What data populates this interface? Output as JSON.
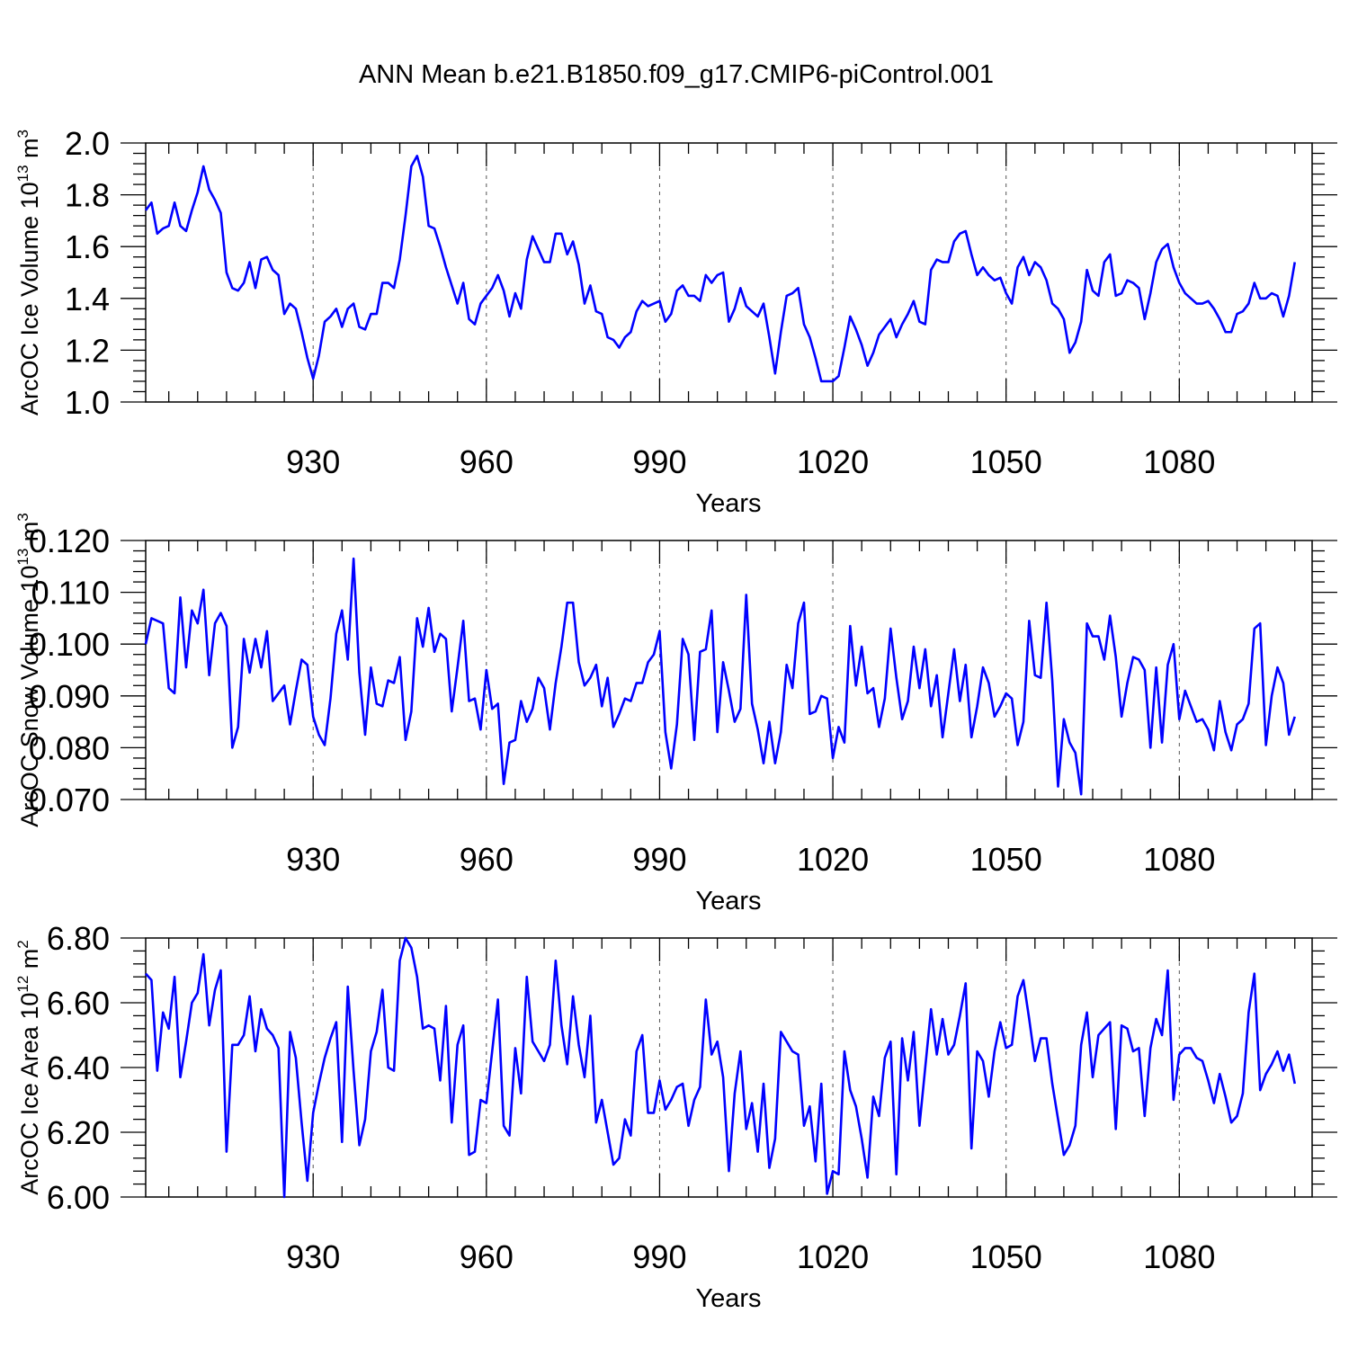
{
  "title": "ANN Mean b.e21.B1850.f09_g17.CMIP6-piControl.001",
  "chart_data": [
    {
      "type": "line",
      "name": "ice-volume",
      "ylabel": "ArcOC Ice Volume 10",
      "ylabel_sup": "13",
      "ylabel_unit": "m",
      "ylabel_unit_sup": "3",
      "xlabel": "Years",
      "xlim": [
        901,
        1103
      ],
      "ylim": [
        1.0,
        2.0
      ],
      "xticks": [
        930,
        960,
        990,
        1020,
        1050,
        1080
      ],
      "xtick_labels": [
        "930",
        "960",
        "990",
        "1020",
        "1050",
        "1080"
      ],
      "yticks": [
        1.0,
        1.2,
        1.4,
        1.6,
        1.8,
        2.0
      ],
      "ytick_labels": [
        "1.0",
        "1.2",
        "1.4",
        "1.6",
        "1.8",
        "2.0"
      ],
      "x_start": 901,
      "values": [
        1.74,
        1.77,
        1.65,
        1.67,
        1.68,
        1.77,
        1.68,
        1.66,
        1.74,
        1.81,
        1.91,
        1.82,
        1.78,
        1.73,
        1.5,
        1.44,
        1.43,
        1.46,
        1.54,
        1.44,
        1.55,
        1.56,
        1.51,
        1.49,
        1.34,
        1.38,
        1.36,
        1.27,
        1.17,
        1.09,
        1.18,
        1.31,
        1.33,
        1.36,
        1.29,
        1.36,
        1.38,
        1.29,
        1.28,
        1.34,
        1.34,
        1.46,
        1.46,
        1.44,
        1.55,
        1.72,
        1.91,
        1.95,
        1.87,
        1.68,
        1.67,
        1.6,
        1.52,
        1.45,
        1.38,
        1.46,
        1.32,
        1.3,
        1.38,
        1.41,
        1.44,
        1.49,
        1.43,
        1.33,
        1.42,
        1.36,
        1.55,
        1.64,
        1.59,
        1.54,
        1.54,
        1.65,
        1.65,
        1.57,
        1.62,
        1.53,
        1.38,
        1.45,
        1.35,
        1.34,
        1.25,
        1.24,
        1.21,
        1.25,
        1.27,
        1.35,
        1.39,
        1.37,
        1.38,
        1.39,
        1.31,
        1.34,
        1.43,
        1.45,
        1.41,
        1.41,
        1.39,
        1.49,
        1.46,
        1.49,
        1.5,
        1.31,
        1.36,
        1.44,
        1.37,
        1.35,
        1.33,
        1.38,
        1.25,
        1.11,
        1.27,
        1.41,
        1.42,
        1.44,
        1.3,
        1.25,
        1.17,
        1.08,
        1.08,
        1.08,
        1.1,
        1.21,
        1.33,
        1.28,
        1.22,
        1.14,
        1.19,
        1.26,
        1.29,
        1.32,
        1.25,
        1.3,
        1.34,
        1.39,
        1.31,
        1.3,
        1.51,
        1.55,
        1.54,
        1.54,
        1.62,
        1.65,
        1.66,
        1.57,
        1.49,
        1.52,
        1.49,
        1.47,
        1.48,
        1.42,
        1.38,
        1.52,
        1.56,
        1.49,
        1.54,
        1.52,
        1.47,
        1.38,
        1.36,
        1.32,
        1.19,
        1.23,
        1.31,
        1.51,
        1.43,
        1.41,
        1.54,
        1.57,
        1.41,
        1.42,
        1.47,
        1.46,
        1.44,
        1.32,
        1.42,
        1.54,
        1.59,
        1.61,
        1.52,
        1.46,
        1.42,
        1.4,
        1.38,
        1.38,
        1.39,
        1.36,
        1.32,
        1.27,
        1.27,
        1.34,
        1.35,
        1.38,
        1.46,
        1.4,
        1.4,
        1.42,
        1.41,
        1.33,
        1.41,
        1.54
      ]
    },
    {
      "type": "line",
      "name": "snow-volume",
      "ylabel": "ArcOC Snow Volume 10",
      "ylabel_sup": "13",
      "ylabel_unit": "m",
      "ylabel_unit_sup": "3",
      "xlabel": "Years",
      "xlim": [
        901,
        1103
      ],
      "ylim": [
        0.07,
        0.12
      ],
      "xticks": [
        930,
        960,
        990,
        1020,
        1050,
        1080
      ],
      "xtick_labels": [
        "930",
        "960",
        "990",
        "1020",
        "1050",
        "1080"
      ],
      "yticks": [
        0.07,
        0.08,
        0.09,
        0.1,
        0.11,
        0.12
      ],
      "ytick_labels": [
        "0.070",
        "0.080",
        "0.090",
        "0.100",
        "0.110",
        "0.120"
      ],
      "x_start": 901,
      "values": [
        0.1,
        0.105,
        0.1045,
        0.104,
        0.0915,
        0.0905,
        0.109,
        0.0955,
        0.1065,
        0.104,
        0.1105,
        0.094,
        0.104,
        0.106,
        0.1035,
        0.08,
        0.084,
        0.101,
        0.0945,
        0.101,
        0.0955,
        0.1025,
        0.089,
        0.0905,
        0.092,
        0.0845,
        0.091,
        0.097,
        0.096,
        0.086,
        0.0825,
        0.0805,
        0.0895,
        0.102,
        0.1065,
        0.097,
        0.1165,
        0.0945,
        0.0825,
        0.0955,
        0.0885,
        0.088,
        0.093,
        0.0925,
        0.0975,
        0.0815,
        0.087,
        0.105,
        0.0995,
        0.107,
        0.0985,
        0.102,
        0.101,
        0.087,
        0.0955,
        0.1045,
        0.089,
        0.0895,
        0.0835,
        0.095,
        0.0875,
        0.0885,
        0.073,
        0.081,
        0.0815,
        0.089,
        0.085,
        0.0875,
        0.0935,
        0.0915,
        0.0835,
        0.0925,
        0.0995,
        0.108,
        0.108,
        0.0965,
        0.092,
        0.0935,
        0.096,
        0.088,
        0.0935,
        0.084,
        0.0865,
        0.0895,
        0.089,
        0.0925,
        0.0925,
        0.0965,
        0.098,
        0.1025,
        0.083,
        0.076,
        0.0845,
        0.101,
        0.098,
        0.0815,
        0.0985,
        0.099,
        0.1065,
        0.083,
        0.0965,
        0.091,
        0.085,
        0.0875,
        0.1095,
        0.0885,
        0.0835,
        0.077,
        0.085,
        0.077,
        0.083,
        0.096,
        0.0915,
        0.104,
        0.108,
        0.0865,
        0.087,
        0.09,
        0.0895,
        0.078,
        0.084,
        0.081,
        0.1035,
        0.092,
        0.0995,
        0.0905,
        0.0915,
        0.084,
        0.0895,
        0.103,
        0.0935,
        0.0855,
        0.089,
        0.0995,
        0.0915,
        0.099,
        0.088,
        0.094,
        0.082,
        0.0905,
        0.099,
        0.089,
        0.096,
        0.082,
        0.088,
        0.0955,
        0.0925,
        0.086,
        0.088,
        0.0905,
        0.0895,
        0.0805,
        0.085,
        0.1045,
        0.094,
        0.0935,
        0.108,
        0.093,
        0.0725,
        0.0855,
        0.081,
        0.079,
        0.071,
        0.104,
        0.1015,
        0.1015,
        0.097,
        0.1055,
        0.0975,
        0.086,
        0.0925,
        0.0975,
        0.097,
        0.095,
        0.08,
        0.0955,
        0.081,
        0.096,
        0.1,
        0.0855,
        0.091,
        0.088,
        0.085,
        0.0855,
        0.0835,
        0.0795,
        0.089,
        0.083,
        0.0795,
        0.0845,
        0.0855,
        0.0885,
        0.103,
        0.104,
        0.0805,
        0.09,
        0.0955,
        0.0925,
        0.0825,
        0.086
      ]
    },
    {
      "type": "line",
      "name": "ice-area",
      "ylabel": "ArcOC Ice Area 10",
      "ylabel_sup": "12",
      "ylabel_unit": "m",
      "ylabel_unit_sup": "2",
      "xlabel": "Years",
      "xlim": [
        901,
        1103
      ],
      "ylim": [
        6.0,
        6.8
      ],
      "xticks": [
        930,
        960,
        990,
        1020,
        1050,
        1080
      ],
      "xtick_labels": [
        "930",
        "960",
        "990",
        "1020",
        "1050",
        "1080"
      ],
      "yticks": [
        6.0,
        6.2,
        6.4,
        6.6,
        6.8
      ],
      "ytick_labels": [
        "6.00",
        "6.20",
        "6.40",
        "6.60",
        "6.80"
      ],
      "x_start": 901,
      "values": [
        6.69,
        6.67,
        6.39,
        6.57,
        6.52,
        6.68,
        6.37,
        6.48,
        6.6,
        6.63,
        6.75,
        6.53,
        6.64,
        6.7,
        6.14,
        6.47,
        6.47,
        6.5,
        6.62,
        6.45,
        6.58,
        6.52,
        6.5,
        6.46,
        6.0,
        6.51,
        6.43,
        6.23,
        6.05,
        6.26,
        6.35,
        6.43,
        6.49,
        6.54,
        6.17,
        6.65,
        6.39,
        6.16,
        6.24,
        6.45,
        6.51,
        6.64,
        6.4,
        6.39,
        6.73,
        6.8,
        6.77,
        6.68,
        6.52,
        6.53,
        6.52,
        6.36,
        6.59,
        6.23,
        6.47,
        6.53,
        6.13,
        6.14,
        6.3,
        6.29,
        6.45,
        6.61,
        6.22,
        6.19,
        6.46,
        6.32,
        6.68,
        6.48,
        6.45,
        6.42,
        6.47,
        6.73,
        6.53,
        6.41,
        6.62,
        6.47,
        6.37,
        6.56,
        6.23,
        6.3,
        6.2,
        6.1,
        6.12,
        6.24,
        6.19,
        6.45,
        6.5,
        6.26,
        6.26,
        6.36,
        6.27,
        6.3,
        6.34,
        6.35,
        6.22,
        6.3,
        6.34,
        6.61,
        6.44,
        6.48,
        6.37,
        6.08,
        6.32,
        6.45,
        6.21,
        6.29,
        6.14,
        6.35,
        6.09,
        6.18,
        6.51,
        6.48,
        6.45,
        6.44,
        6.22,
        6.28,
        6.11,
        6.35,
        6.01,
        6.08,
        6.07,
        6.45,
        6.33,
        6.28,
        6.18,
        6.06,
        6.31,
        6.25,
        6.43,
        6.48,
        6.07,
        6.49,
        6.36,
        6.51,
        6.22,
        6.4,
        6.58,
        6.44,
        6.55,
        6.44,
        6.47,
        6.56,
        6.66,
        6.15,
        6.45,
        6.42,
        6.31,
        6.45,
        6.54,
        6.46,
        6.47,
        6.62,
        6.67,
        6.55,
        6.42,
        6.49,
        6.49,
        6.35,
        6.24,
        6.13,
        6.16,
        6.22,
        6.47,
        6.57,
        6.37,
        6.5,
        6.52,
        6.54,
        6.21,
        6.53,
        6.52,
        6.45,
        6.46,
        6.25,
        6.46,
        6.55,
        6.5,
        6.7,
        6.3,
        6.44,
        6.46,
        6.46,
        6.43,
        6.42,
        6.36,
        6.29,
        6.38,
        6.31,
        6.23,
        6.25,
        6.32,
        6.57,
        6.69,
        6.33,
        6.38,
        6.41,
        6.45,
        6.39,
        6.44,
        6.35
      ]
    }
  ]
}
